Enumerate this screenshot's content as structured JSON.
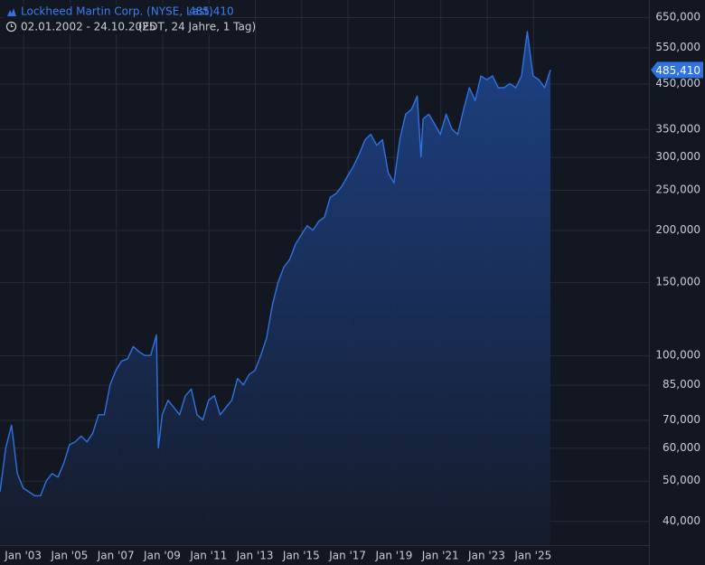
{
  "chart_data": {
    "type": "area",
    "title": "Lockheed Martin Corp. (NYSE, Last)",
    "last_label": "485,410",
    "subtitle": "02.01.2002 - 24.10.2025",
    "subtitle_note": "(EDT, 24 Jahre, 1 Tag)",
    "log_scale": true,
    "grid": true,
    "color": "#2f72e0",
    "x": [
      "2002-01",
      "2002-04",
      "2002-07",
      "2002-10",
      "2003-01",
      "2003-04",
      "2003-07",
      "2003-10",
      "2004-01",
      "2004-04",
      "2004-07",
      "2004-10",
      "2005-01",
      "2005-04",
      "2005-07",
      "2005-10",
      "2006-01",
      "2006-04",
      "2006-07",
      "2006-10",
      "2007-01",
      "2007-04",
      "2007-07",
      "2007-10",
      "2008-01",
      "2008-04",
      "2008-07",
      "2008-10",
      "2008-11",
      "2009-01",
      "2009-04",
      "2009-07",
      "2009-10",
      "2010-01",
      "2010-04",
      "2010-07",
      "2010-10",
      "2011-01",
      "2011-04",
      "2011-07",
      "2011-10",
      "2012-01",
      "2012-04",
      "2012-07",
      "2012-10",
      "2013-01",
      "2013-04",
      "2013-07",
      "2013-10",
      "2014-01",
      "2014-04",
      "2014-07",
      "2014-10",
      "2015-01",
      "2015-04",
      "2015-07",
      "2015-10",
      "2016-01",
      "2016-04",
      "2016-07",
      "2016-10",
      "2017-01",
      "2017-04",
      "2017-07",
      "2017-10",
      "2018-01",
      "2018-04",
      "2018-07",
      "2018-10",
      "2019-01",
      "2019-04",
      "2019-07",
      "2019-10",
      "2020-01",
      "2020-03",
      "2020-04",
      "2020-07",
      "2020-10",
      "2021-01",
      "2021-04",
      "2021-07",
      "2021-10",
      "2022-01",
      "2022-04",
      "2022-07",
      "2022-10",
      "2023-01",
      "2023-04",
      "2023-07",
      "2023-10",
      "2024-01",
      "2024-04",
      "2024-07",
      "2024-10",
      "2025-01",
      "2025-04",
      "2025-07",
      "2025-10"
    ],
    "values": [
      47,
      60,
      68,
      52,
      48,
      47,
      46,
      46,
      50,
      52,
      51,
      55,
      61,
      62,
      64,
      62,
      65,
      72,
      72,
      85,
      92,
      97,
      98,
      105,
      102,
      100,
      100,
      112,
      60,
      72,
      78,
      75,
      72,
      80,
      83,
      72,
      70,
      78,
      80,
      72,
      75,
      78,
      88,
      85,
      90,
      92,
      100,
      110,
      132,
      150,
      163,
      170,
      185,
      195,
      205,
      200,
      210,
      215,
      240,
      245,
      255,
      270,
      285,
      305,
      330,
      340,
      320,
      330,
      275,
      260,
      330,
      380,
      390,
      420,
      300,
      370,
      380,
      360,
      340,
      380,
      350,
      340,
      390,
      440,
      410,
      470,
      460,
      470,
      440,
      440,
      450,
      440,
      470,
      600,
      470,
      460,
      440,
      485.41
    ],
    "xlim": [
      "2002-01",
      "2030-01"
    ],
    "xticks": [
      {
        "value": "2003-01",
        "label": "Jan '03"
      },
      {
        "value": "2005-01",
        "label": "Jan '05"
      },
      {
        "value": "2007-01",
        "label": "Jan '07"
      },
      {
        "value": "2009-01",
        "label": "Jan '09"
      },
      {
        "value": "2011-01",
        "label": "Jan '11"
      },
      {
        "value": "2013-01",
        "label": "Jan '13"
      },
      {
        "value": "2015-01",
        "label": "Jan '15"
      },
      {
        "value": "2017-01",
        "label": "Jan '17"
      },
      {
        "value": "2019-01",
        "label": "Jan '19"
      },
      {
        "value": "2021-01",
        "label": "Jan '21"
      },
      {
        "value": "2023-01",
        "label": "Jan '23"
      },
      {
        "value": "2025-01",
        "label": "Jan '25"
      }
    ],
    "ylim": [
      35,
      715
    ],
    "yticks": [
      {
        "value": 40,
        "label": "40,000"
      },
      {
        "value": 50,
        "label": "50,000"
      },
      {
        "value": 60,
        "label": "60,000"
      },
      {
        "value": 70,
        "label": "70,000"
      },
      {
        "value": 85,
        "label": "85,000"
      },
      {
        "value": 100,
        "label": "100,000"
      },
      {
        "value": 150,
        "label": "150,000"
      },
      {
        "value": 200,
        "label": "200,000"
      },
      {
        "value": 250,
        "label": "250,000"
      },
      {
        "value": 300,
        "label": "300,000"
      },
      {
        "value": 350,
        "label": "350,000"
      },
      {
        "value": 450,
        "label": "450,000"
      },
      {
        "value": 550,
        "label": "550,000"
      },
      {
        "value": 650,
        "label": "650,000"
      }
    ]
  }
}
